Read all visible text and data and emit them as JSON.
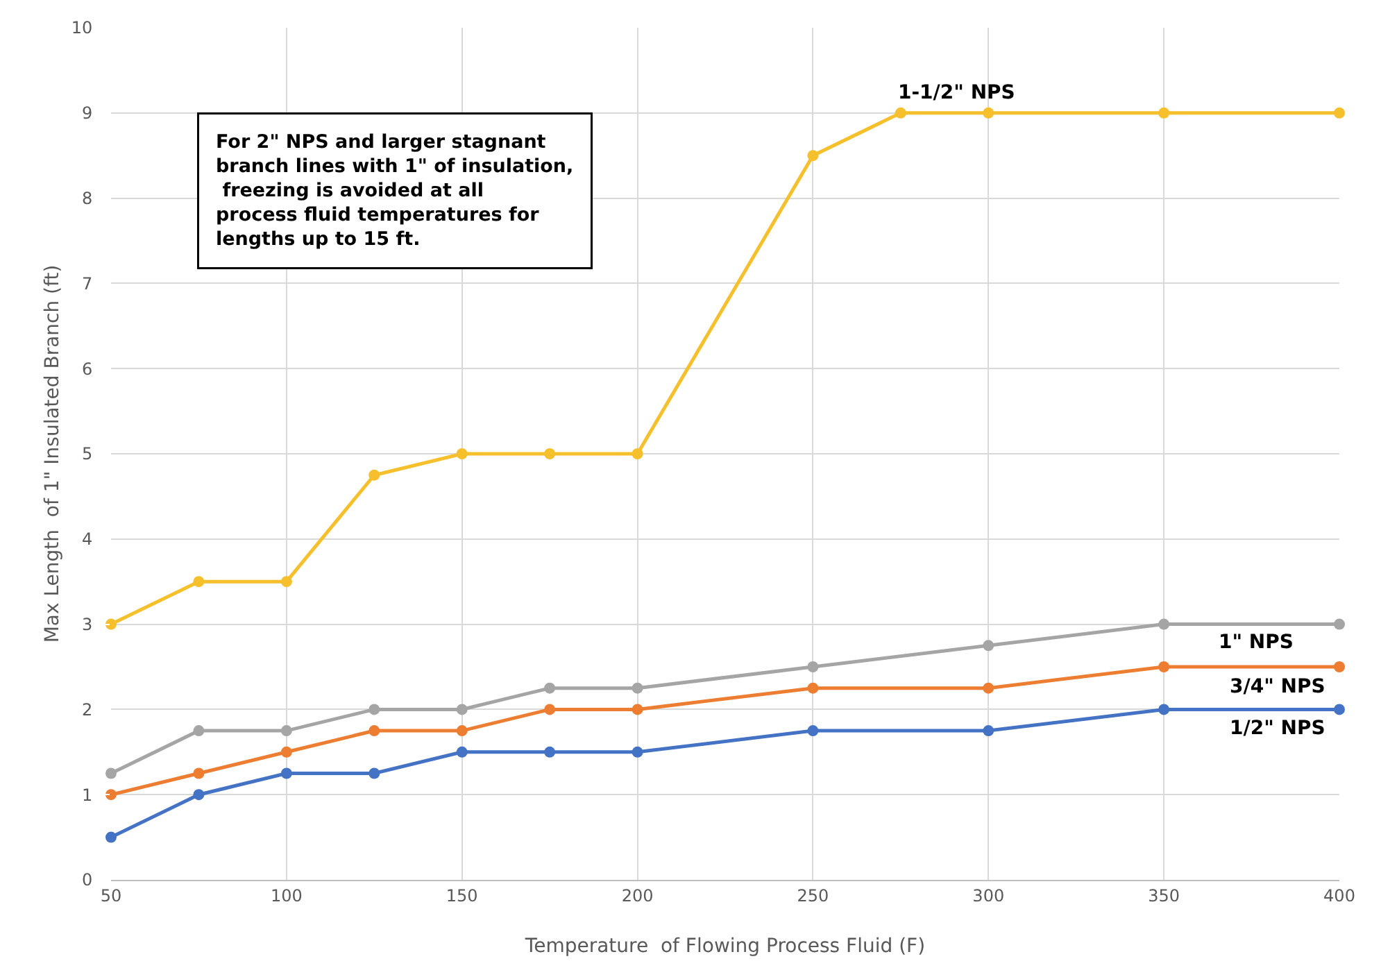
{
  "chart_data": {
    "type": "line",
    "xlabel": "Temperature  of Flowing Process Fluid (F)",
    "ylabel": "Max Length  of 1\" Insulated Branch (ft)",
    "xlim": [
      50,
      400
    ],
    "xticks": [
      50,
      100,
      150,
      200,
      250,
      300,
      350,
      400
    ],
    "ylim": [
      0,
      10
    ],
    "yticks": [
      0,
      1,
      2,
      3,
      4,
      5,
      6,
      7,
      8,
      9,
      10
    ],
    "grid": true,
    "legend": false,
    "marker": "circle",
    "line_style": "solid",
    "series": [
      {
        "name": "1/2\" NPS",
        "color": "#4472c4",
        "x": [
          50,
          75,
          100,
          125,
          150,
          175,
          200,
          250,
          300,
          350,
          400
        ],
        "values": [
          0.5,
          1,
          1.25,
          1.25,
          1.5,
          1.5,
          1.5,
          1.75,
          1.75,
          2,
          2
        ]
      },
      {
        "name": "3/4\" NPS",
        "color": "#ed7d31",
        "x": [
          50,
          75,
          100,
          125,
          150,
          175,
          200,
          250,
          300,
          350,
          400
        ],
        "values": [
          1,
          1.25,
          1.5,
          1.75,
          1.75,
          2,
          2,
          2.25,
          2.25,
          2.5,
          2.5
        ]
      },
      {
        "name": "1\" NPS",
        "color": "#a5a5a5",
        "x": [
          50,
          75,
          100,
          125,
          150,
          175,
          200,
          250,
          300,
          350,
          400
        ],
        "values": [
          1.25,
          1.75,
          1.75,
          2,
          2,
          2.25,
          2.25,
          2.5,
          2.75,
          3,
          3
        ]
      },
      {
        "name": "1-1/2\" NPS",
        "color": "#f5c02c",
        "x": [
          50,
          75,
          100,
          125,
          150,
          175,
          200,
          250,
          275,
          300,
          350,
          400
        ],
        "values": [
          3,
          3.5,
          3.5,
          4.75,
          5,
          5,
          5,
          8.5,
          9,
          9,
          9,
          9
        ]
      }
    ],
    "annotations": [
      "For 2\" NPS and larger stagnant\nbranch lines with 1\" of insulation,\n freezing is avoided at all\nprocess fluid temperatures for\nlengths up to 15 ft."
    ]
  }
}
